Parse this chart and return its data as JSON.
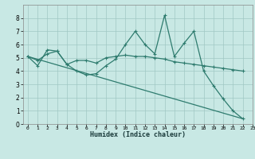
{
  "xlabel": "Humidex (Indice chaleur)",
  "xlim": [
    -0.5,
    23
  ],
  "ylim": [
    0,
    9
  ],
  "xticks": [
    0,
    1,
    2,
    3,
    4,
    5,
    6,
    7,
    8,
    9,
    10,
    11,
    12,
    13,
    14,
    15,
    16,
    17,
    18,
    19,
    20,
    21,
    22,
    23
  ],
  "yticks": [
    0,
    1,
    2,
    3,
    4,
    5,
    6,
    7,
    8
  ],
  "bg_color": "#c8e8e4",
  "line_color": "#2e7b6e",
  "grid_color": "#a0c8c4",
  "series": [
    {
      "x": [
        0,
        1,
        2,
        3,
        4,
        5,
        6,
        7,
        8,
        9,
        10,
        11,
        12,
        13,
        14,
        15,
        16,
        17,
        18,
        19,
        20,
        21,
        22
      ],
      "y": [
        5.1,
        4.4,
        5.6,
        5.5,
        4.5,
        4.0,
        3.7,
        3.8,
        4.4,
        4.9,
        6.0,
        7.0,
        6.0,
        5.3,
        8.2,
        5.1,
        6.1,
        7.0,
        4.0,
        2.9,
        1.9,
        1.0,
        0.4
      ]
    },
    {
      "x": [
        0,
        1,
        2,
        3,
        4,
        5,
        6,
        7,
        8,
        9,
        10,
        11,
        12,
        13,
        14,
        15,
        16,
        17,
        18,
        19,
        20,
        21,
        22
      ],
      "y": [
        5.1,
        4.8,
        5.3,
        5.5,
        4.5,
        4.8,
        4.8,
        4.6,
        5.0,
        5.1,
        5.2,
        5.1,
        5.1,
        5.0,
        4.9,
        4.7,
        4.6,
        4.5,
        4.4,
        4.3,
        4.2,
        4.1,
        4.0
      ]
    },
    {
      "x": [
        0,
        22
      ],
      "y": [
        5.1,
        0.4
      ],
      "straight": true
    }
  ]
}
